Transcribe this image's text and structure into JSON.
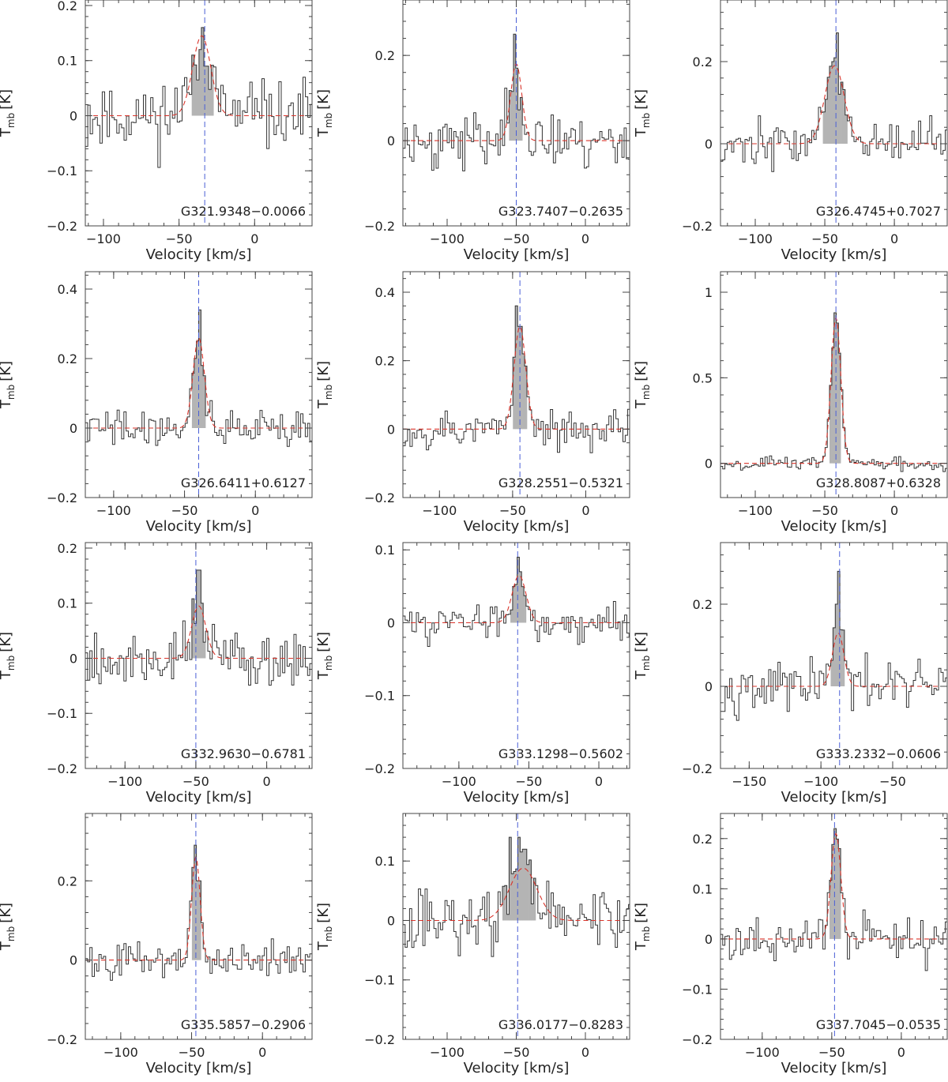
{
  "figure": {
    "ylabel_main": "T",
    "ylabel_sub": "mb",
    "ylabel_unit": "[K]",
    "xlabel": "Velocity [km/s]"
  },
  "chart_data": [
    {
      "type": "line",
      "name": "G321.9348−0.0066",
      "xlim": [
        -112,
        38
      ],
      "ylim": [
        -0.2,
        0.21
      ],
      "xticks": [
        -100,
        -50,
        0
      ],
      "yticks": [
        -0.2,
        -0.1,
        0,
        0.1,
        0.2
      ],
      "ytick_labels": [
        "−0.2",
        "−0.1",
        "0",
        "0.1",
        "0.2"
      ],
      "xtick_labels": [
        "−100",
        "−50",
        "0"
      ],
      "vlsr": -33,
      "fit": {
        "amp": 0.145,
        "center": -35,
        "width": 6
      },
      "shade": [
        -42,
        -28
      ],
      "seed": 11,
      "noise": 0.08,
      "peaks": [
        [
          -36,
          0.12
        ],
        [
          -34,
          0.16
        ],
        [
          -32,
          0.09
        ]
      ]
    },
    {
      "type": "line",
      "name": "G323.7407−0.2635",
      "xlim": [
        -132,
        32
      ],
      "ylim": [
        -0.2,
        0.33
      ],
      "xticks": [
        -100,
        -50,
        0
      ],
      "yticks": [
        -0.2,
        0,
        0.2
      ],
      "ytick_labels": [
        "−0.2",
        "0",
        "0.2"
      ],
      "xtick_labels": [
        "−100",
        "−50",
        "0"
      ],
      "vlsr": -50,
      "fit": {
        "amp": 0.18,
        "center": -50,
        "width": 4
      },
      "shade": [
        -56,
        -46
      ],
      "seed": 23,
      "noise": 0.09,
      "peaks": [
        [
          -51,
          0.25
        ],
        [
          -49,
          0.17
        ]
      ]
    },
    {
      "type": "line",
      "name": "G326.4745+0.7027",
      "xlim": [
        -125,
        38
      ],
      "ylim": [
        -0.2,
        0.35
      ],
      "xticks": [
        -100,
        -50,
        0
      ],
      "yticks": [
        -0.2,
        0,
        0.2
      ],
      "ytick_labels": [
        "−0.2",
        "0",
        "0.2"
      ],
      "xtick_labels": [
        "−100",
        "−50",
        "0"
      ],
      "vlsr": -42,
      "fit": {
        "amp": 0.19,
        "center": -43,
        "width": 7
      },
      "shade": [
        -52,
        -34
      ],
      "seed": 37,
      "noise": 0.07,
      "peaks": [
        [
          -44,
          0.2
        ],
        [
          -41,
          0.27
        ],
        [
          -38,
          0.15
        ]
      ]
    },
    {
      "type": "line",
      "name": "G326.6411+0.6127",
      "xlim": [
        -120,
        40
      ],
      "ylim": [
        -0.2,
        0.45
      ],
      "xticks": [
        -100,
        -50,
        0
      ],
      "yticks": [
        -0.2,
        0,
        0.2,
        0.4
      ],
      "ytick_labels": [
        "−0.2",
        "0",
        "0.2",
        "0.4"
      ],
      "xtick_labels": [
        "−100",
        "−50",
        "0"
      ],
      "vlsr": -40,
      "fit": {
        "amp": 0.26,
        "center": -40,
        "width": 4
      },
      "shade": [
        -45,
        -36
      ],
      "seed": 41,
      "noise": 0.07,
      "peaks": [
        [
          -41,
          0.25
        ],
        [
          -39,
          0.34
        ],
        [
          -37,
          0.18
        ]
      ]
    },
    {
      "type": "line",
      "name": "G328.2551−0.5321",
      "xlim": [
        -125,
        30
      ],
      "ylim": [
        -0.2,
        0.46
      ],
      "xticks": [
        -100,
        -50,
        0
      ],
      "yticks": [
        -0.2,
        0,
        0.2,
        0.4
      ],
      "ytick_labels": [
        "−0.2",
        "0",
        "0.2",
        "0.4"
      ],
      "xtick_labels": [
        "−100",
        "−50",
        "0"
      ],
      "vlsr": -45,
      "fit": {
        "amp": 0.3,
        "center": -45,
        "width": 4
      },
      "shade": [
        -50,
        -40
      ],
      "seed": 53,
      "noise": 0.08,
      "peaks": [
        [
          -47,
          0.36
        ],
        [
          -45,
          0.3
        ],
        [
          -43,
          0.22
        ]
      ]
    },
    {
      "type": "line",
      "name": "G328.8087+0.6328",
      "xlim": [
        -125,
        38
      ],
      "ylim": [
        -0.2,
        1.12
      ],
      "xticks": [
        -100,
        -50,
        0
      ],
      "yticks": [
        0,
        0.5,
        1
      ],
      "ytick_labels": [
        "0",
        "0.5",
        "1"
      ],
      "xtick_labels": [
        "−100",
        "−50",
        "0"
      ],
      "vlsr": -42,
      "fit": {
        "amp": 0.85,
        "center": -42,
        "width": 3.5
      },
      "shade": [
        -47,
        -38
      ],
      "seed": 67,
      "noise": 0.05,
      "peaks": [
        [
          -43,
          0.88
        ],
        [
          -41,
          0.82
        ]
      ]
    },
    {
      "type": "line",
      "name": "G332.9630−0.6781",
      "xlim": [
        -128,
        32
      ],
      "ylim": [
        -0.2,
        0.21
      ],
      "xticks": [
        -100,
        -50,
        0
      ],
      "yticks": [
        -0.2,
        -0.1,
        0,
        0.1,
        0.2
      ],
      "ytick_labels": [
        "−0.2",
        "−0.1",
        "0",
        "0.1",
        "0.2"
      ],
      "xtick_labels": [
        "−100",
        "−50",
        "0"
      ],
      "vlsr": -50,
      "fit": {
        "amp": 0.095,
        "center": -48,
        "width": 5
      },
      "shade": [
        -55,
        -44
      ],
      "seed": 79,
      "noise": 0.07,
      "peaks": [
        [
          -48,
          0.16
        ],
        [
          -46,
          0.1
        ]
      ]
    },
    {
      "type": "line",
      "name": "G333.1298−0.5602",
      "xlim": [
        -140,
        22
      ],
      "ylim": [
        -0.2,
        0.11
      ],
      "xticks": [
        -100,
        -50,
        0
      ],
      "yticks": [
        -0.2,
        -0.1,
        0,
        0.1
      ],
      "ytick_labels": [
        "−0.2",
        "−0.1",
        "0",
        "0.1"
      ],
      "xtick_labels": [
        "−100",
        "−50",
        "0"
      ],
      "vlsr": -58,
      "fit": {
        "amp": 0.065,
        "center": -57,
        "width": 5
      },
      "shade": [
        -63,
        -52
      ],
      "seed": 83,
      "noise": 0.03,
      "peaks": [
        [
          -58,
          0.09
        ],
        [
          -56,
          0.07
        ]
      ]
    },
    {
      "type": "line",
      "name": "G333.2332−0.0606",
      "xlim": [
        -170,
        -12
      ],
      "ylim": [
        -0.2,
        0.35
      ],
      "xticks": [
        -150,
        -100,
        -50
      ],
      "yticks": [
        -0.2,
        0,
        0.2
      ],
      "ytick_labels": [
        "−0.2",
        "0",
        "0.2"
      ],
      "xtick_labels": [
        "−150",
        "−100",
        "−50"
      ],
      "vlsr": -87,
      "fit": {
        "amp": 0.13,
        "center": -88,
        "width": 4
      },
      "shade": [
        -93,
        -83
      ],
      "seed": 97,
      "noise": 0.08,
      "peaks": [
        [
          -87,
          0.28
        ],
        [
          -89,
          0.2
        ]
      ]
    },
    {
      "type": "line",
      "name": "G335.5857−0.2906",
      "xlim": [
        -125,
        35
      ],
      "ylim": [
        -0.2,
        0.37
      ],
      "xticks": [
        -100,
        -50,
        0
      ],
      "yticks": [
        -0.2,
        0,
        0.2
      ],
      "ytick_labels": [
        "−0.2",
        "0",
        "0.2"
      ],
      "xtick_labels": [
        "−100",
        "−50",
        "0"
      ],
      "vlsr": -47,
      "fit": {
        "amp": 0.26,
        "center": -47,
        "width": 3
      },
      "shade": [
        -50,
        -44
      ],
      "seed": 101,
      "noise": 0.06,
      "peaks": [
        [
          -47,
          0.29
        ],
        [
          -45,
          0.2
        ]
      ]
    },
    {
      "type": "line",
      "name": "G336.0177−0.8283",
      "xlim": [
        -132,
        32
      ],
      "ylim": [
        -0.2,
        0.18
      ],
      "xticks": [
        -100,
        -50,
        0
      ],
      "yticks": [
        -0.2,
        -0.1,
        0,
        0.1
      ],
      "ytick_labels": [
        "−0.2",
        "−0.1",
        "0",
        "0.1"
      ],
      "xtick_labels": [
        "−100",
        "−50",
        "0"
      ],
      "vlsr": -49,
      "fit": {
        "amp": 0.088,
        "center": -45,
        "width": 10
      },
      "shade": [
        -60,
        -36
      ],
      "seed": 113,
      "noise": 0.07,
      "peaks": [
        [
          -55,
          0.14
        ],
        [
          -48,
          0.14
        ],
        [
          -44,
          0.12
        ]
      ]
    },
    {
      "type": "line",
      "name": "G337.7045−0.0535",
      "xlim": [
        -130,
        33
      ],
      "ylim": [
        -0.2,
        0.25
      ],
      "xticks": [
        -100,
        -50,
        0
      ],
      "yticks": [
        -0.2,
        -0.1,
        0,
        0.1,
        0.2
      ],
      "ytick_labels": [
        "−0.2",
        "−0.1",
        "0",
        "0.1",
        "0.2"
      ],
      "xtick_labels": [
        "−100",
        "−50",
        "0"
      ],
      "vlsr": -48,
      "fit": {
        "amp": 0.21,
        "center": -47,
        "width": 3.5
      },
      "shade": [
        -51,
        -43
      ],
      "seed": 127,
      "noise": 0.06,
      "peaks": [
        [
          -47,
          0.22
        ],
        [
          -45,
          0.18
        ]
      ]
    }
  ]
}
